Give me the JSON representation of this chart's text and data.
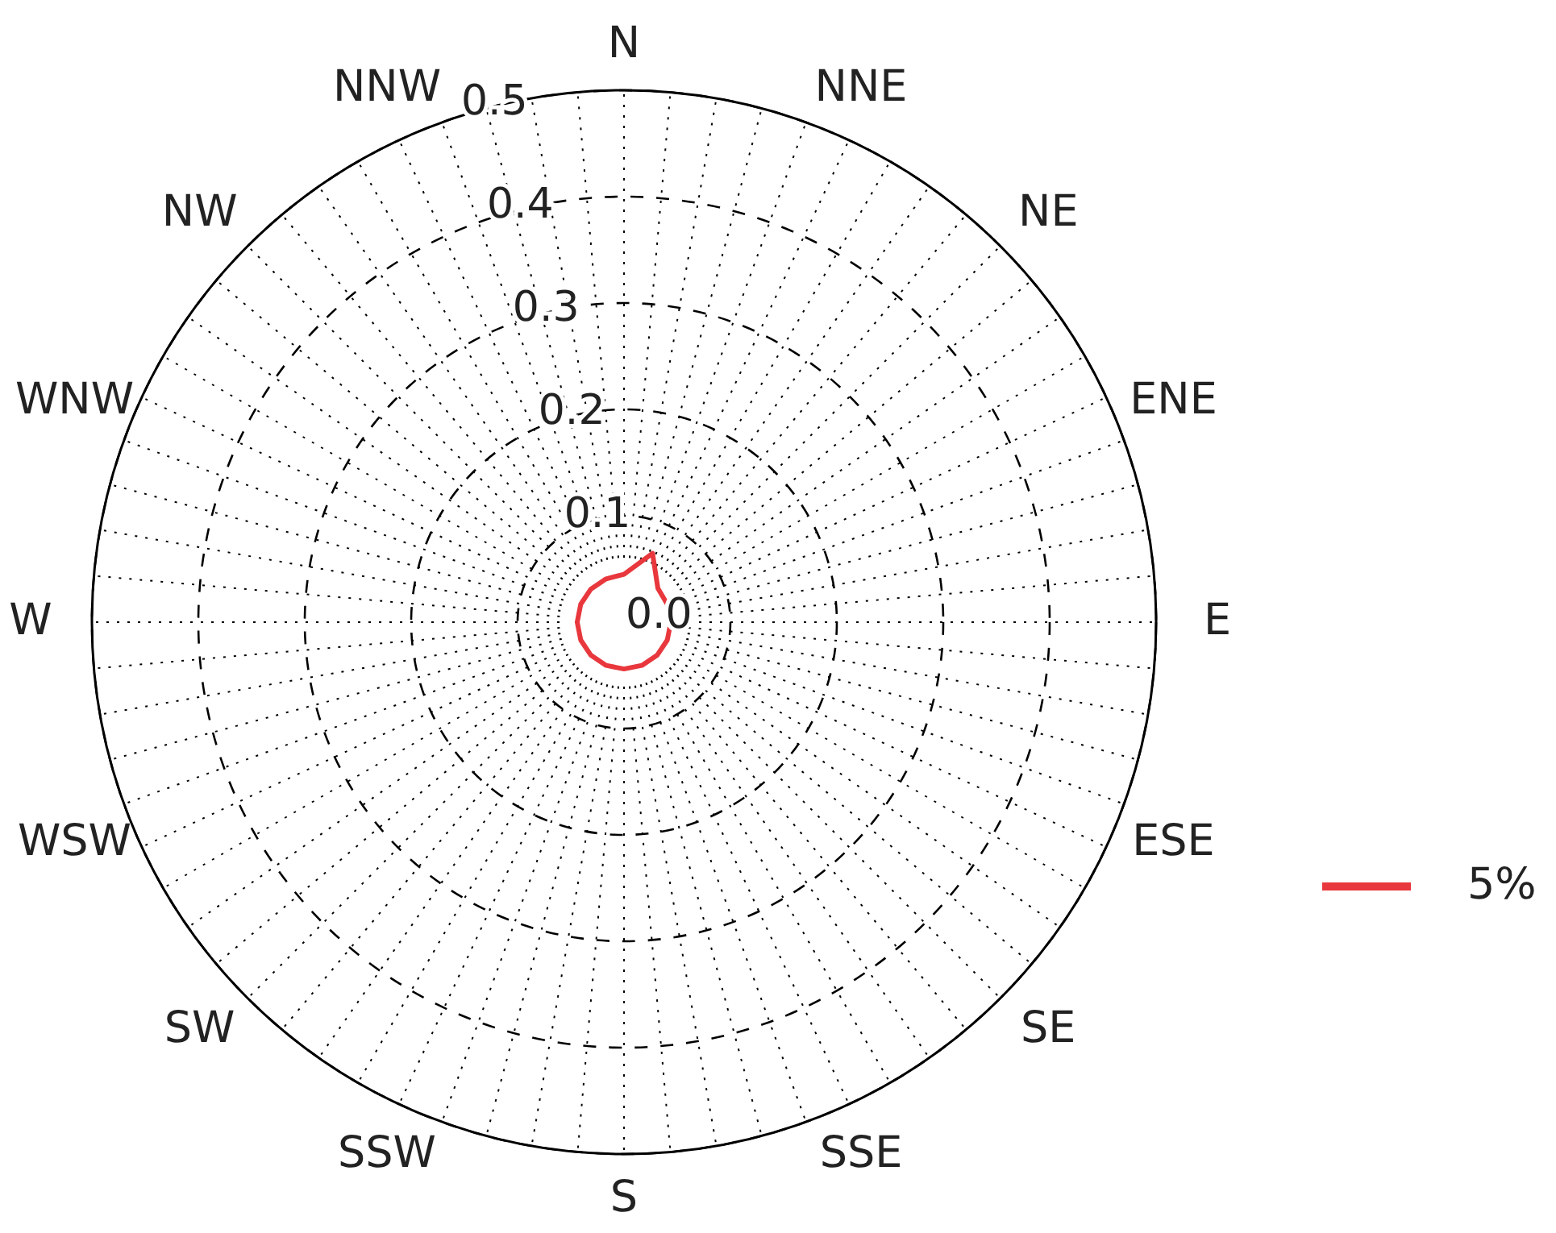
{
  "chart_data": {
    "type": "radar",
    "categories": [
      "N",
      "NNE",
      "NE",
      "ENE",
      "E",
      "ESE",
      "SE",
      "SSE",
      "S",
      "SSW",
      "SW",
      "WSW",
      "W",
      "WNW",
      "NW",
      "NNW"
    ],
    "series": [
      {
        "name": "5%",
        "color": "#e8383d",
        "values": [
          0.045,
          0.07,
          0.045,
          0.044,
          0.044,
          0.044,
          0.044,
          0.044,
          0.044,
          0.044,
          0.044,
          0.044,
          0.044,
          0.044,
          0.044,
          0.044
        ]
      }
    ],
    "ylim": [
      0,
      0.5
    ],
    "yticks": [
      {
        "value": 0,
        "label": "0.0"
      },
      0.1,
      0.2,
      0.3,
      0.4,
      0.5
    ],
    "grid": true,
    "legend": "right"
  }
}
